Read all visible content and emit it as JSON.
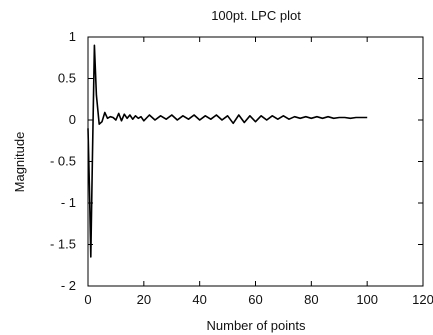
{
  "chart_data": {
    "type": "line",
    "title": "100pt. LPC plot",
    "xlabel": "Number of points",
    "ylabel": "Magnitude",
    "xlim": [
      0,
      120
    ],
    "ylim": [
      -2,
      1
    ],
    "xticks": [
      0,
      20,
      40,
      60,
      80,
      100,
      120
    ],
    "xtick_labels": [
      "0",
      "20",
      "40",
      "60",
      "80",
      "100",
      "120"
    ],
    "yticks": [
      1,
      0.5,
      0,
      -0.5,
      -1,
      -1.5,
      -2
    ],
    "ytick_labels": [
      "1",
      "0.5",
      "0",
      "- 0.5",
      "- 1",
      "- 1.5",
      "- 2"
    ],
    "grid": false,
    "series": [
      {
        "values": [
          [
            0,
            -0.1
          ],
          [
            0.5,
            -0.8
          ],
          [
            1,
            -1.65
          ],
          [
            1.6,
            -0.4
          ],
          [
            2.3,
            0.9
          ],
          [
            3,
            0.3
          ],
          [
            4,
            -0.05
          ],
          [
            5,
            -0.02
          ],
          [
            6,
            0.09
          ],
          [
            7,
            0.02
          ],
          [
            8,
            0.04
          ],
          [
            9,
            0.03
          ],
          [
            10,
            0.0
          ],
          [
            11,
            0.08
          ],
          [
            12,
            -0.01
          ],
          [
            13,
            0.07
          ],
          [
            14,
            0.02
          ],
          [
            15,
            0.06
          ],
          [
            16,
            0.01
          ],
          [
            17,
            0.05
          ],
          [
            18,
            0.02
          ],
          [
            19,
            0.04
          ],
          [
            20,
            -0.01
          ],
          [
            22,
            0.06
          ],
          [
            24,
            0.0
          ],
          [
            26,
            0.05
          ],
          [
            28,
            0.01
          ],
          [
            30,
            0.06
          ],
          [
            32,
            0.0
          ],
          [
            34,
            0.05
          ],
          [
            36,
            0.01
          ],
          [
            38,
            0.06
          ],
          [
            40,
            0.0
          ],
          [
            42,
            0.05
          ],
          [
            44,
            0.01
          ],
          [
            46,
            0.06
          ],
          [
            48,
            0.0
          ],
          [
            50,
            0.05
          ],
          [
            52,
            -0.04
          ],
          [
            54,
            0.06
          ],
          [
            56,
            -0.03
          ],
          [
            58,
            0.05
          ],
          [
            60,
            -0.02
          ],
          [
            62,
            0.05
          ],
          [
            64,
            0.0
          ],
          [
            66,
            0.05
          ],
          [
            68,
            0.01
          ],
          [
            70,
            0.05
          ],
          [
            72,
            0.01
          ],
          [
            74,
            0.04
          ],
          [
            76,
            0.02
          ],
          [
            78,
            0.04
          ],
          [
            80,
            0.02
          ],
          [
            82,
            0.04
          ],
          [
            84,
            0.02
          ],
          [
            86,
            0.04
          ],
          [
            88,
            0.02
          ],
          [
            90,
            0.03
          ],
          [
            92,
            0.03
          ],
          [
            94,
            0.02
          ],
          [
            96,
            0.03
          ],
          [
            98,
            0.03
          ],
          [
            100,
            0.03
          ]
        ]
      }
    ]
  }
}
